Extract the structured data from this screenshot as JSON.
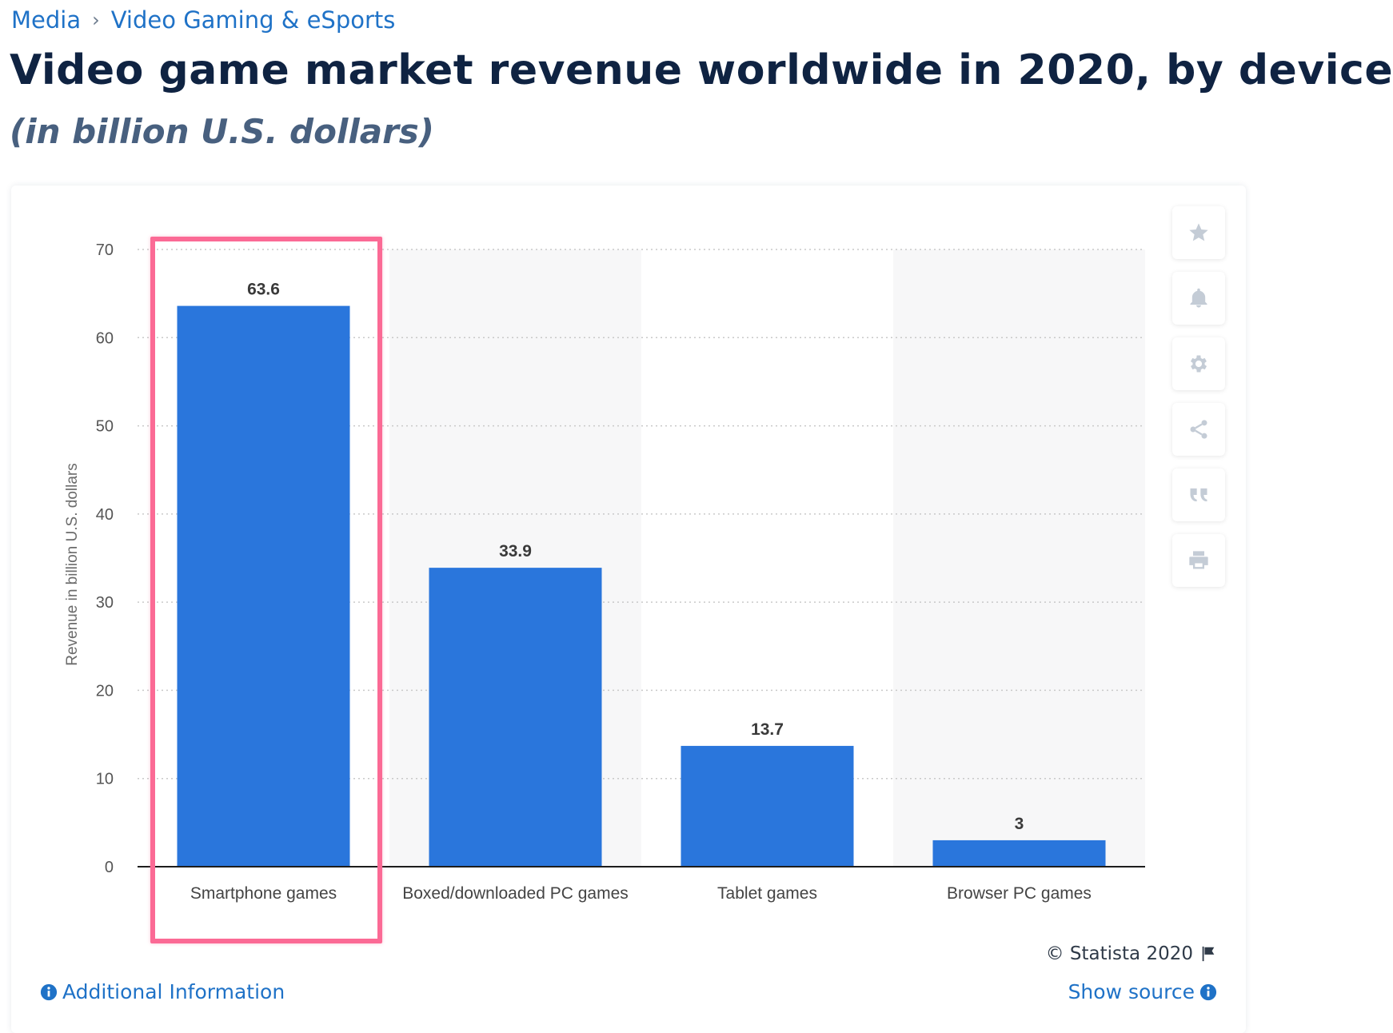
{
  "breadcrumb": {
    "items": [
      "Media",
      "Video Gaming & eSports"
    ],
    "separator": "›"
  },
  "header": {
    "title": "Video game market revenue worldwide in 2020, by device",
    "subtitle": "(in billion U.S. dollars)"
  },
  "toolbar": {
    "buttons": [
      "star-icon",
      "bell-icon",
      "gear-icon",
      "share-icon",
      "quote-icon",
      "print-icon"
    ]
  },
  "chart_data": {
    "type": "bar",
    "categories": [
      "Smartphone games",
      "Boxed/downloaded PC games",
      "Tablet games",
      "Browser PC games"
    ],
    "values": [
      63.6,
      33.9,
      13.7,
      3
    ],
    "value_labels": [
      "63.6",
      "33.9",
      "13.7",
      "3"
    ],
    "ylabel": "Revenue in billion U.S. dollars",
    "ylim": [
      0,
      70
    ],
    "yticks": [
      "0",
      "10",
      "20",
      "30",
      "40",
      "50",
      "60",
      "70"
    ],
    "grid": true,
    "bar_color": "#2a76dc",
    "highlighted_category": "Smartphone games",
    "highlight_color": "#fb6a95"
  },
  "footer": {
    "copyright": "© Statista 2020",
    "additional_info": "Additional Information",
    "show_source": "Show source"
  }
}
